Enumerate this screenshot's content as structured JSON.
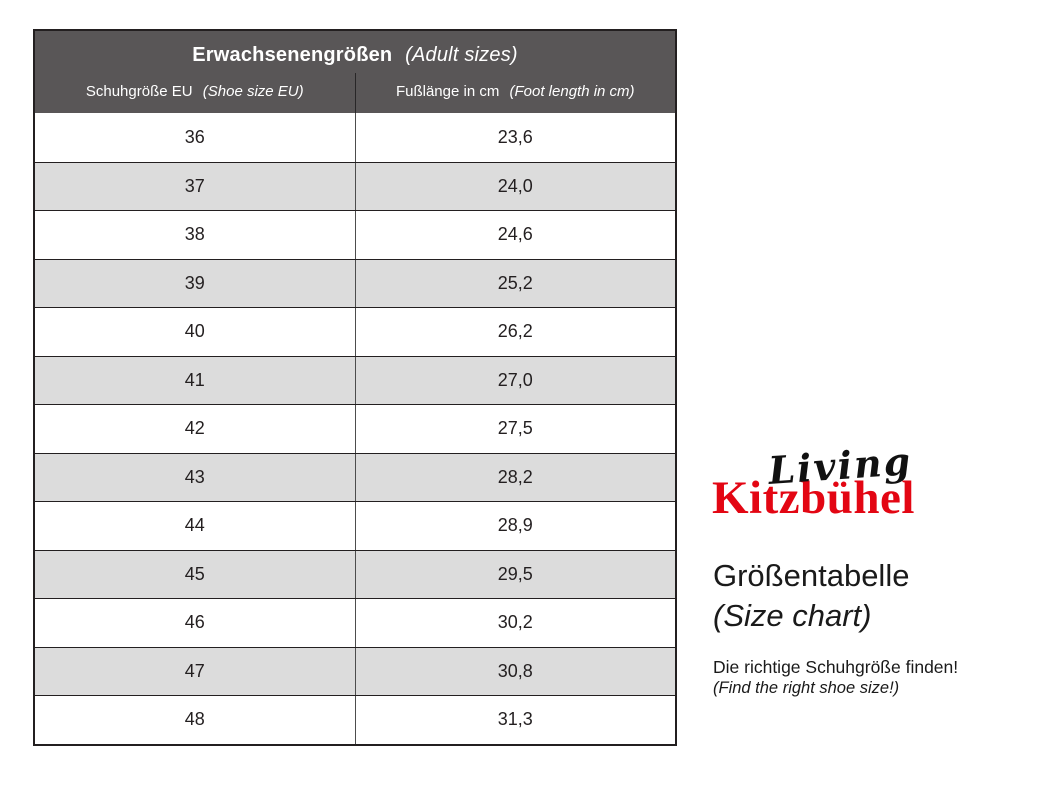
{
  "colors": {
    "header-bg": "#595657",
    "row-alt": "#dcdcdc",
    "table-border": "#231f20",
    "text": "#231f20",
    "brand-red": "#e30613"
  },
  "table": {
    "title": "Erwachsenengrößen",
    "title_note": "(Adult sizes)",
    "col1_label": "Schuhgröße EU",
    "col1_note": "(Shoe size EU)",
    "col2_label": "Fußlänge in cm",
    "col2_note": "(Foot length in cm)",
    "rows": [
      {
        "size": "36",
        "length": "23,6"
      },
      {
        "size": "37",
        "length": "24,0"
      },
      {
        "size": "38",
        "length": "24,6"
      },
      {
        "size": "39",
        "length": "25,2"
      },
      {
        "size": "40",
        "length": "26,2"
      },
      {
        "size": "41",
        "length": "27,0"
      },
      {
        "size": "42",
        "length": "27,5"
      },
      {
        "size": "43",
        "length": "28,2"
      },
      {
        "size": "44",
        "length": "28,9"
      },
      {
        "size": "45",
        "length": "29,5"
      },
      {
        "size": "46",
        "length": "30,2"
      },
      {
        "size": "47",
        "length": "30,8"
      },
      {
        "size": "48",
        "length": "31,3"
      }
    ]
  },
  "brand": {
    "script": "Living",
    "name": "Kitzbühel"
  },
  "caption": {
    "title": "Größentabelle",
    "title_note": "(Size chart)",
    "line1": "Die richtige Schuhgröße finden!",
    "line2": "(Find the right shoe size!)"
  },
  "chart_data": {
    "type": "table",
    "title": "Erwachsenengrößen (Adult sizes)",
    "columns": [
      "Schuhgröße EU (Shoe size EU)",
      "Fußlänge in cm (Foot length in cm)"
    ],
    "categories": [
      36,
      37,
      38,
      39,
      40,
      41,
      42,
      43,
      44,
      45,
      46,
      47,
      48
    ],
    "values": [
      23.6,
      24.0,
      24.6,
      25.2,
      26.2,
      27.0,
      27.5,
      28.2,
      28.9,
      29.5,
      30.2,
      30.8,
      31.3
    ],
    "value_unit": "cm",
    "notes": "EU adult shoe sizes mapped to foot length in cm; decimal comma formatting; alternating row shading"
  }
}
